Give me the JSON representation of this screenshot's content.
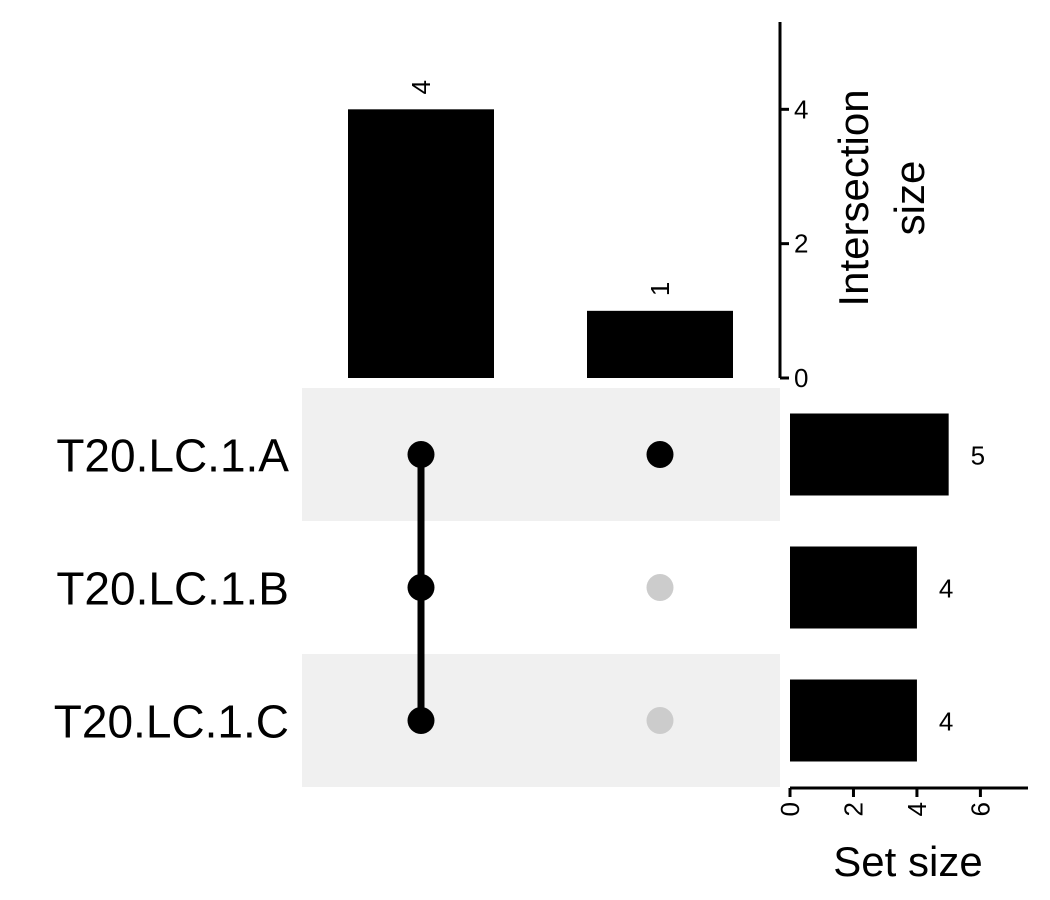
{
  "chart_data": {
    "type": "upset",
    "sets": [
      "T20.LC.1.A",
      "T20.LC.1.B",
      "T20.LC.1.C"
    ],
    "intersections": [
      {
        "members": [
          "T20.LC.1.A",
          "T20.LC.1.B",
          "T20.LC.1.C"
        ],
        "size": 4
      },
      {
        "members": [
          "T20.LC.1.A"
        ],
        "size": 1
      }
    ],
    "intersection_axis": {
      "title_line1": "Intersection",
      "title_line2": "size",
      "ticks": [
        0,
        2,
        4
      ],
      "range": [
        0,
        5.3
      ]
    },
    "set_sizes": [
      5,
      4,
      4
    ],
    "set_size_axis": {
      "title": "Set size",
      "ticks": [
        0,
        2,
        4,
        6
      ],
      "range": [
        0,
        7.5
      ]
    },
    "colors": {
      "bar": "#000000",
      "dot_active": "#000000",
      "dot_inactive": "#cccccc",
      "stripe": "#f0f0f0"
    }
  }
}
